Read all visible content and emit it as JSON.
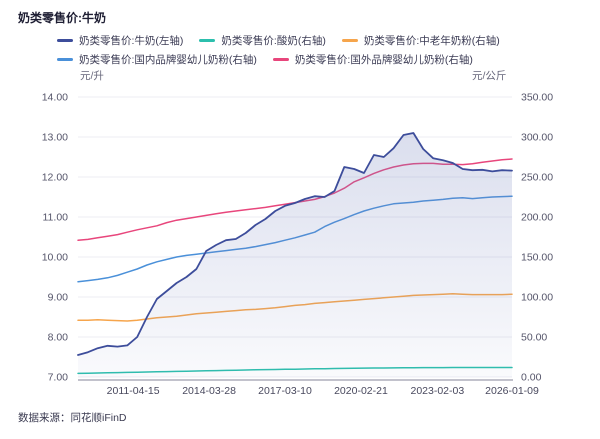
{
  "header": {
    "title": "奶类零售价:牛奶"
  },
  "footer": {
    "text": "数据来源：同花顺iFinD"
  },
  "chart_data": {
    "type": "line",
    "title": "奶类零售价:牛奶",
    "grid": "horizontal",
    "legend_position": "top",
    "left_axis": {
      "unit": "元/升",
      "min": 7,
      "max": 14,
      "tick_labels": [
        "14.00",
        "13.00",
        "12.00",
        "11.00",
        "10.00",
        "9.00",
        "8.00",
        "7.00"
      ]
    },
    "right_axis": {
      "unit": "元/公斤",
      "min": 0,
      "max": 350,
      "tick_labels": [
        "350.00",
        "300.00",
        "250.00",
        "200.00",
        "150.00",
        "100.00",
        "50.00",
        "0.00"
      ]
    },
    "x_axis": {
      "tick_labels": [
        "2011-04-15",
        "2014-03-28",
        "2017-03-10",
        "2020-02-21",
        "2023-02-03",
        "2026-01-09"
      ],
      "tick_positions": [
        0.127,
        0.302,
        0.477,
        0.652,
        0.828,
        1.0
      ]
    },
    "legend_rows": [
      [
        0,
        1,
        2
      ],
      [
        3,
        4
      ]
    ],
    "series": [
      {
        "name": "奶类零售价:牛奶(左轴)",
        "key": "milk",
        "axis": "left",
        "color": "#3D4D9B",
        "area_fill": true,
        "values": [
          7.55,
          7.62,
          7.72,
          7.78,
          7.76,
          7.79,
          8.0,
          8.5,
          8.95,
          9.15,
          9.35,
          9.5,
          9.7,
          10.15,
          10.3,
          10.42,
          10.45,
          10.6,
          10.8,
          10.95,
          11.15,
          11.28,
          11.35,
          11.45,
          11.52,
          11.5,
          11.65,
          12.25,
          12.2,
          12.1,
          12.55,
          12.5,
          12.72,
          13.05,
          13.1,
          12.7,
          12.47,
          12.42,
          12.35,
          12.2,
          12.17,
          12.18,
          12.14,
          12.17,
          12.16
        ]
      },
      {
        "name": "奶类零售价:酸奶(右轴)",
        "key": "yogurt",
        "axis": "right",
        "color": "#2CBFAD",
        "area_fill": false,
        "values": [
          4.5,
          4.7,
          5.0,
          5.2,
          5.5,
          5.8,
          6.0,
          6.3,
          6.5,
          6.8,
          7.0,
          7.3,
          7.5,
          7.8,
          8.0,
          8.2,
          8.5,
          8.7,
          9.0,
          9.2,
          9.4,
          9.6,
          9.8,
          10.0,
          10.2,
          10.4,
          10.6,
          10.8,
          11.0,
          11.1,
          11.2,
          11.3,
          11.4,
          11.5,
          11.6,
          11.7,
          11.75,
          11.8,
          11.85,
          11.9,
          11.9,
          11.9,
          11.9,
          11.9,
          11.9
        ]
      },
      {
        "name": "奶类零售价:中老年奶粉(右轴)",
        "key": "middle-aged-milk-powder",
        "axis": "right",
        "color": "#F6A54C",
        "area_fill": false,
        "values": [
          71,
          71,
          71.5,
          71,
          70.5,
          70,
          71,
          72.5,
          74,
          75,
          76,
          77.5,
          79,
          80,
          81,
          82,
          83,
          84,
          84.5,
          85.5,
          86.5,
          88,
          89.5,
          90.5,
          92,
          93,
          94,
          95,
          96,
          97,
          98,
          99,
          100,
          101,
          102,
          102.5,
          103,
          103.5,
          104,
          103.5,
          103,
          103,
          103,
          103,
          103.5
        ]
      },
      {
        "name": "奶类零售价:国内品牌婴幼儿奶粉(右轴)",
        "key": "domestic-infant-formula",
        "axis": "right",
        "color": "#4A90D9",
        "area_fill": false,
        "values": [
          119,
          120.5,
          122,
          124,
          127,
          131,
          135,
          140,
          144,
          147,
          150,
          152,
          153.5,
          155,
          156.5,
          158,
          159.5,
          161,
          163,
          165.5,
          168,
          171,
          174,
          177.5,
          181,
          188,
          193.5,
          198,
          203,
          207.5,
          211,
          214,
          216.5,
          217.5,
          218.5,
          220,
          221,
          222,
          223.5,
          224,
          223,
          224,
          225,
          225.5,
          226
        ]
      },
      {
        "name": "奶类零售价:国外品牌婴幼儿奶粉(右轴)",
        "key": "foreign-infant-formula",
        "axis": "right",
        "color": "#E8467C",
        "area_fill": false,
        "values": [
          171,
          172,
          174,
          176,
          178,
          181,
          184,
          186.5,
          189,
          193,
          196,
          198,
          200,
          202,
          204,
          206,
          207.5,
          209,
          210.5,
          212,
          214,
          216,
          218,
          220,
          222,
          225.5,
          230,
          236,
          244,
          249,
          254.5,
          259,
          262.5,
          265,
          266.5,
          267,
          267,
          266,
          266,
          265.5,
          266.5,
          268.5,
          270,
          271.5,
          272.5
        ]
      }
    ],
    "style": {
      "gridline_color": "#ECECF3",
      "axis_line_color": "#C2C2CC",
      "tick_label_color": "#55556A",
      "area_gradient_color": "#7684BE"
    }
  }
}
